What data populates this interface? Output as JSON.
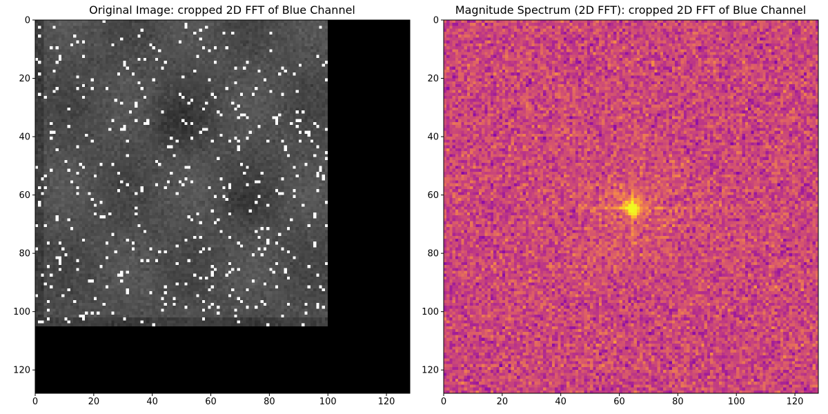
{
  "chart_data": [
    {
      "type": "heatmap",
      "title": "Original Image: cropped 2D FFT of Blue Channel",
      "colormap": "gray",
      "image_size": [
        128,
        128
      ],
      "content_region": {
        "columns": [
          0,
          100
        ],
        "rows": [
          0,
          105
        ]
      },
      "background_value": "black",
      "content_description": "grayscale noisy tissue texture with sparse white salt noise",
      "xlim": [
        0,
        128
      ],
      "ylim": [
        128,
        0
      ],
      "x_ticks": [
        "0",
        "20",
        "40",
        "60",
        "80",
        "100",
        "120"
      ],
      "y_ticks": [
        "0",
        "20",
        "40",
        "60",
        "80",
        "100",
        "120"
      ],
      "xlabel": "",
      "ylabel": ""
    },
    {
      "type": "heatmap",
      "title": "Magnitude Spectrum (2D FFT): cropped 2D FFT of Blue Channel",
      "colormap": "plasma",
      "image_size": [
        128,
        128
      ],
      "peak": {
        "x": 64,
        "y": 64
      },
      "features": "bright centre peak with horizontal and vertical cross streaks on a noisy magenta background",
      "xlim": [
        0,
        128
      ],
      "ylim": [
        128,
        0
      ],
      "x_ticks": [
        "0",
        "20",
        "40",
        "60",
        "80",
        "100",
        "120"
      ],
      "y_ticks": [
        "0",
        "20",
        "40",
        "60",
        "80",
        "100",
        "120"
      ],
      "xlabel": "",
      "ylabel": ""
    }
  ]
}
